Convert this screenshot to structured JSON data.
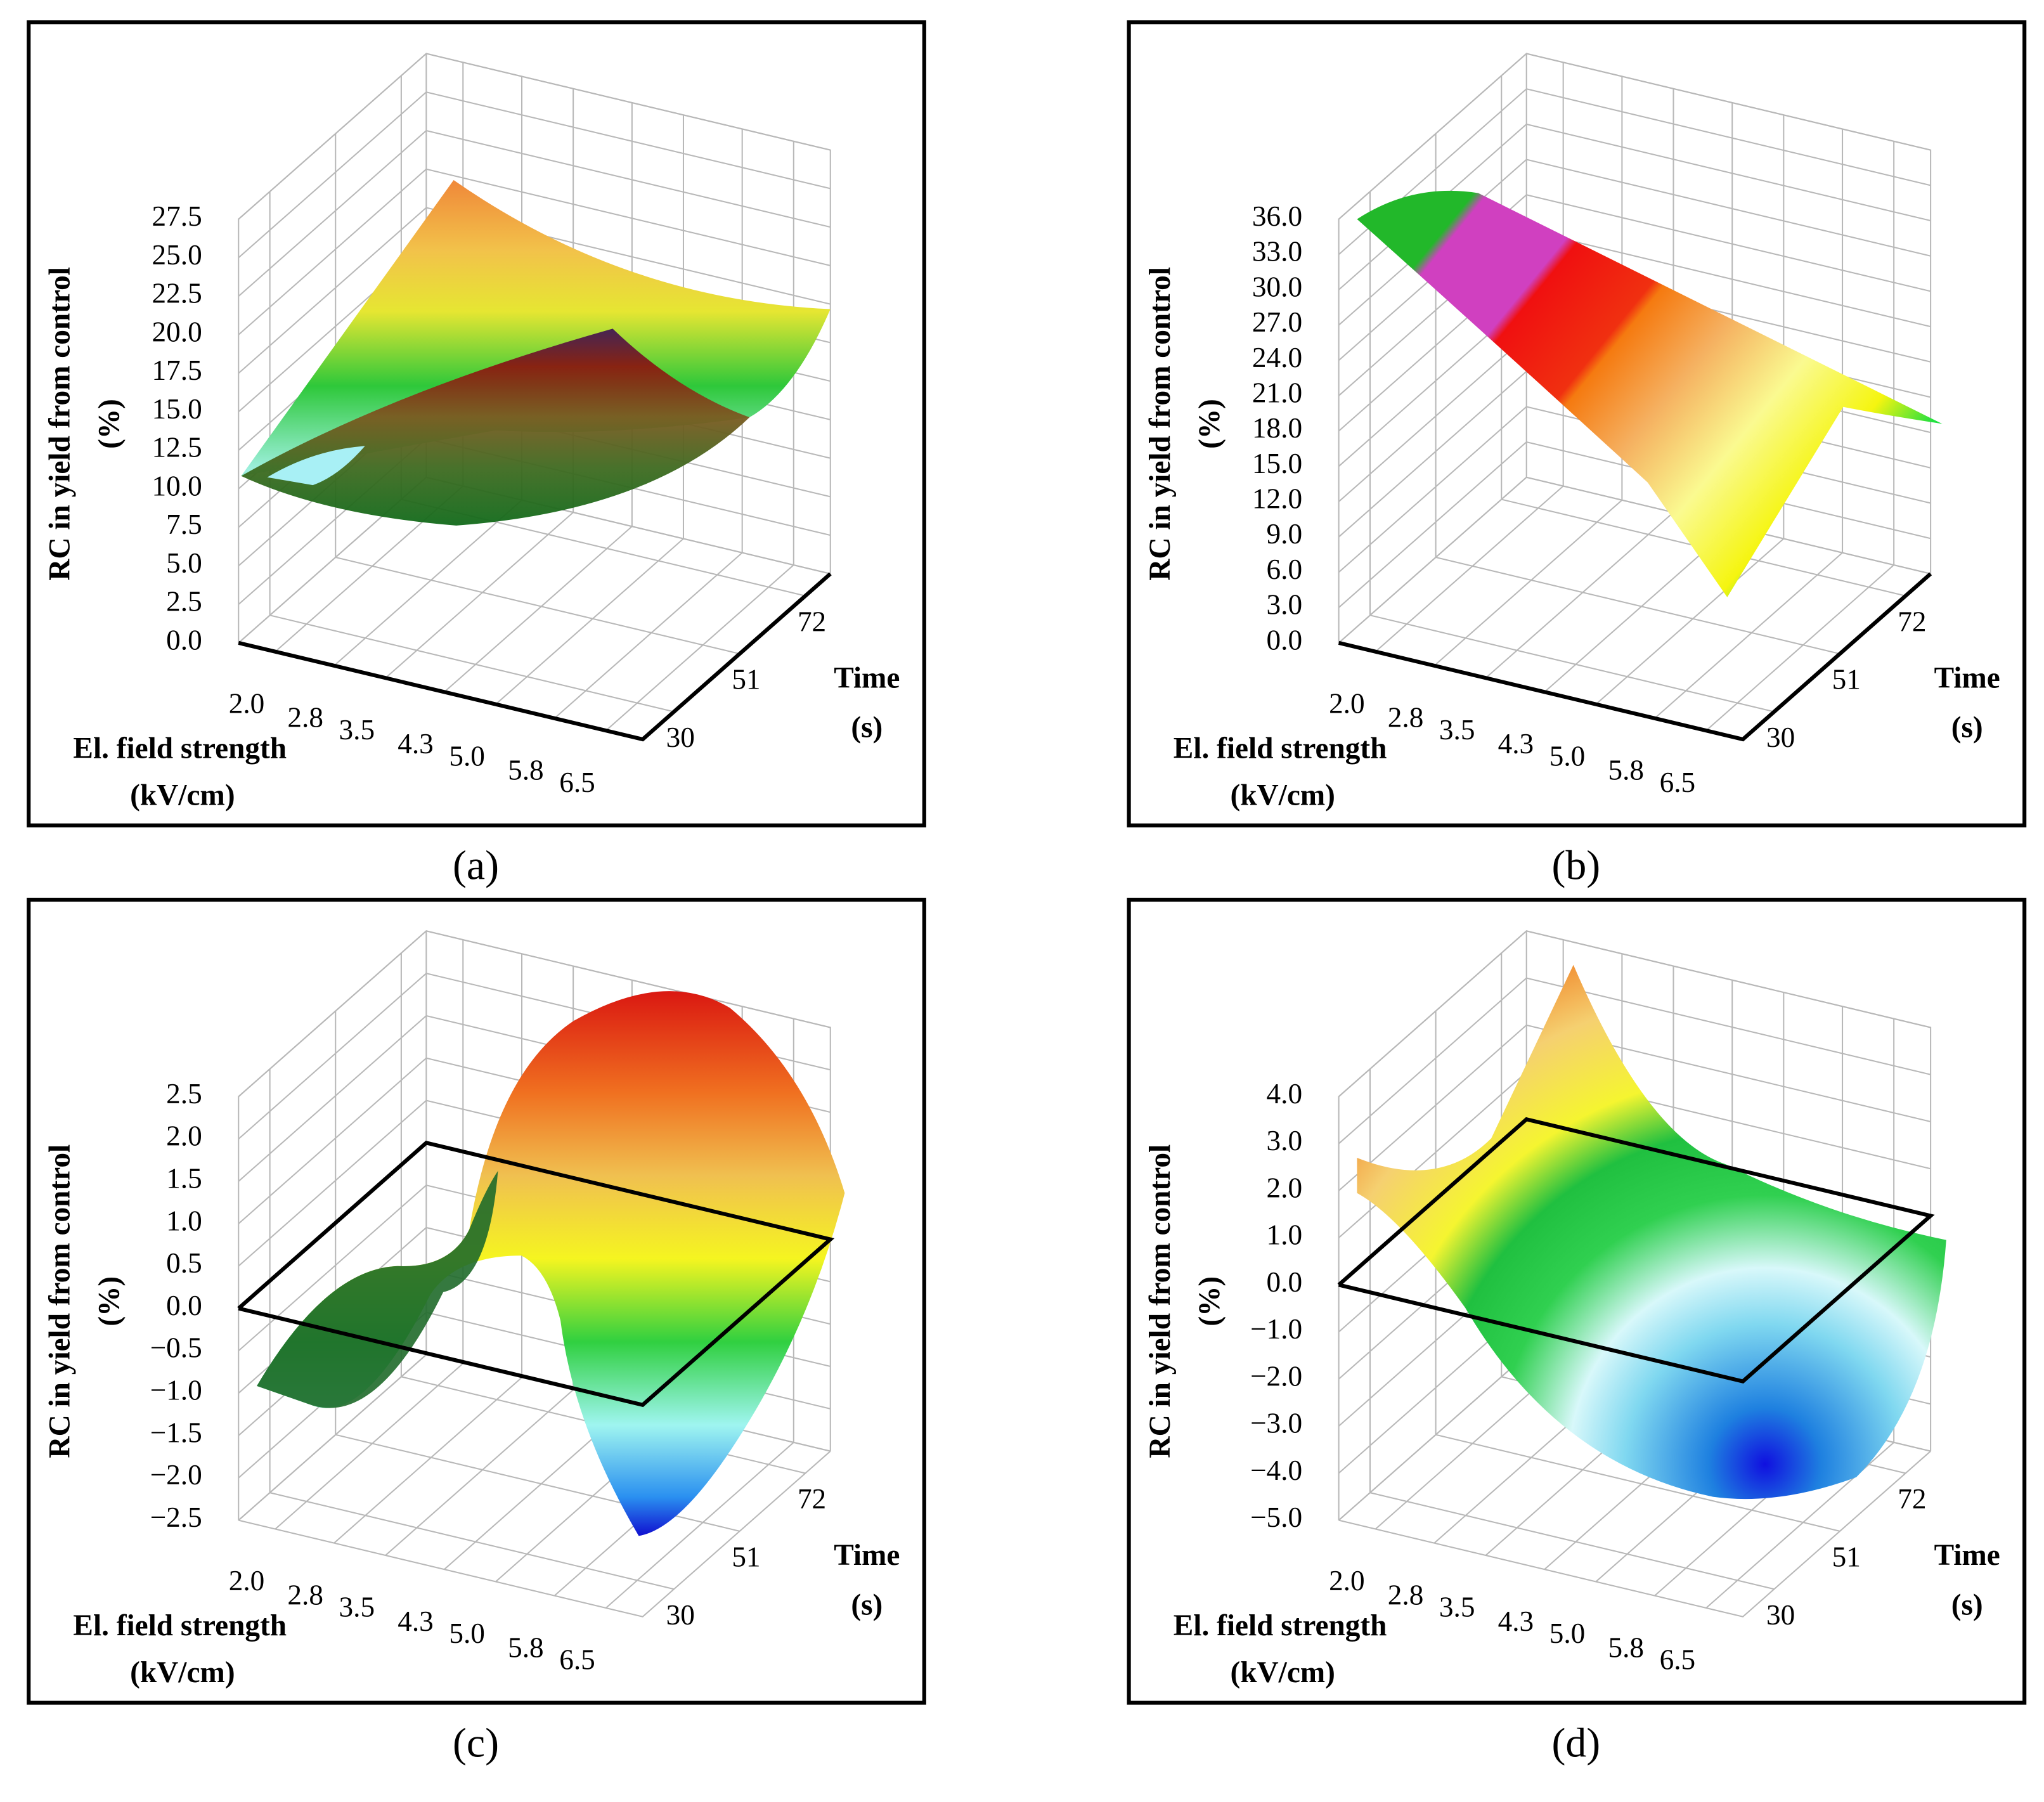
{
  "chart_data": [
    {
      "type": "surface",
      "caption": "(a)",
      "ylabel": "RC in yield from control",
      "ylabel_unit": "(%)",
      "xlabel": "El. field strength",
      "xlabel_unit": "(kV/cm)",
      "zlabel": "Time",
      "zlabel_unit": "(s)",
      "xlim": [
        1.5,
        7.0
      ],
      "xticks": [
        {
          "value": 2,
          "label": "2.0"
        },
        2.8,
        3.5,
        4.3,
        {
          "value": 5,
          "label": "5.0"
        },
        5.8,
        6.5
      ],
      "zlim": [
        20,
        80
      ],
      "zticks": [
        30,
        51,
        72
      ],
      "ylim": [
        0,
        27.5
      ],
      "yticks": [
        {
          "value": 0,
          "label": "0.0"
        },
        2.5,
        {
          "value": 5,
          "label": "5.0"
        },
        7.5,
        {
          "value": 10,
          "label": "10.0"
        },
        12.5,
        {
          "value": 15,
          "label": "15.0"
        },
        17.5,
        {
          "value": 20,
          "label": "20.0"
        },
        22.5,
        {
          "value": 25,
          "label": "25.0"
        },
        27.5
      ]
    },
    {
      "type": "surface",
      "caption": "(b)",
      "ylabel": "RC in yield from control",
      "ylabel_unit": "(%)",
      "xlabel": "El. field strength",
      "xlabel_unit": "(kV/cm)",
      "zlabel": "Time",
      "zlabel_unit": "(s)",
      "xlim": [
        1.5,
        7.0
      ],
      "xticks": [
        {
          "value": 2,
          "label": "2.0"
        },
        2.8,
        3.5,
        4.3,
        {
          "value": 5,
          "label": "5.0"
        },
        5.8,
        6.5
      ],
      "zlim": [
        20,
        80
      ],
      "zticks": [
        30,
        51,
        72
      ],
      "ylim": [
        0,
        36
      ],
      "yticks": [
        {
          "value": 0,
          "label": "0.0"
        },
        {
          "value": 3,
          "label": "3.0"
        },
        {
          "value": 6,
          "label": "6.0"
        },
        {
          "value": 9,
          "label": "9.0"
        },
        {
          "value": 12,
          "label": "12.0"
        },
        {
          "value": 15,
          "label": "15.0"
        },
        {
          "value": 18,
          "label": "18.0"
        },
        {
          "value": 21,
          "label": "21.0"
        },
        {
          "value": 24,
          "label": "24.0"
        },
        {
          "value": 27,
          "label": "27.0"
        },
        {
          "value": 30,
          "label": "30.0"
        },
        {
          "value": 33,
          "label": "33.0"
        },
        {
          "value": 36,
          "label": "36.0"
        }
      ]
    },
    {
      "type": "surface",
      "caption": "(c)",
      "ylabel": "RC in yield from control",
      "ylabel_unit": "(%)",
      "xlabel": "El. field strength",
      "xlabel_unit": "(kV/cm)",
      "zlabel": "Time",
      "zlabel_unit": "(s)",
      "xlim": [
        1.5,
        7.0
      ],
      "xticks": [
        {
          "value": 2,
          "label": "2.0"
        },
        2.8,
        3.5,
        4.3,
        {
          "value": 5,
          "label": "5.0"
        },
        5.8,
        6.5
      ],
      "zlim": [
        20,
        80
      ],
      "zticks": [
        30,
        51,
        72
      ],
      "ylim": [
        -2.5,
        2.5
      ],
      "yticks": [
        {
          "value": -2.5,
          "label": "−2.5"
        },
        {
          "value": -2,
          "label": "−2.0"
        },
        {
          "value": -1.5,
          "label": "−1.5"
        },
        {
          "value": -1,
          "label": "−1.0"
        },
        {
          "value": -0.5,
          "label": "−0.5"
        },
        {
          "value": 0,
          "label": "0.0"
        },
        0.5,
        {
          "value": 1,
          "label": "1.0"
        },
        1.5,
        {
          "value": 2,
          "label": "2.0"
        },
        2.5
      ]
    },
    {
      "type": "surface",
      "caption": "(d)",
      "ylabel": "RC in yield from control",
      "ylabel_unit": "(%)",
      "xlabel": "El. field strength",
      "xlabel_unit": "(kV/cm)",
      "zlabel": "Time",
      "zlabel_unit": "(s)",
      "xlim": [
        1.5,
        7.0
      ],
      "xticks": [
        {
          "value": 2,
          "label": "2.0"
        },
        2.8,
        3.5,
        4.3,
        {
          "value": 5,
          "label": "5.0"
        },
        5.8,
        6.5
      ],
      "zlim": [
        20,
        80
      ],
      "zticks": [
        30,
        51,
        72
      ],
      "ylim": [
        -5,
        4
      ],
      "yticks": [
        {
          "value": -5,
          "label": "−5.0"
        },
        {
          "value": -4,
          "label": "−4.0"
        },
        {
          "value": -3,
          "label": "−3.0"
        },
        {
          "value": -2,
          "label": "−2.0"
        },
        {
          "value": -1,
          "label": "−1.0"
        },
        {
          "value": 0,
          "label": "0.0"
        },
        {
          "value": 1,
          "label": "1.0"
        },
        {
          "value": 2,
          "label": "2.0"
        },
        {
          "value": 3,
          "label": "3.0"
        },
        {
          "value": 4,
          "label": "4.0"
        }
      ]
    }
  ]
}
